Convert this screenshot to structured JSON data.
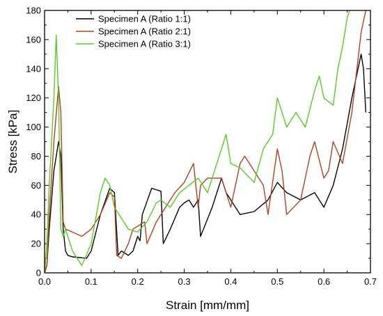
{
  "chart_data": {
    "type": "line",
    "xlabel": "Strain [mm/mm]",
    "ylabel": "Stress [kPa]",
    "xlim": [
      0.0,
      0.7
    ],
    "ylim": [
      0,
      180
    ],
    "xticks": [
      0.0,
      0.1,
      0.2,
      0.3,
      0.4,
      0.5,
      0.6,
      0.7
    ],
    "xtick_labels": [
      "0.0",
      "0.1",
      "0.2",
      "0.3",
      "0.4",
      "0.5",
      "0.6",
      "0.7"
    ],
    "yticks": [
      0,
      20,
      40,
      60,
      80,
      100,
      120,
      140,
      160,
      180
    ],
    "ytick_labels": [
      "0",
      "20",
      "40",
      "60",
      "80",
      "100",
      "120",
      "140",
      "160",
      "180"
    ],
    "grid": false,
    "legend_position": "top-left",
    "series": [
      {
        "name": "Specimen A (Ratio 1:1)",
        "color": "#000000",
        "x": [
          0.0,
          0.005,
          0.01,
          0.02,
          0.03,
          0.035,
          0.04,
          0.045,
          0.05,
          0.06,
          0.09,
          0.1,
          0.12,
          0.14,
          0.15,
          0.158,
          0.165,
          0.18,
          0.19,
          0.2,
          0.205,
          0.21,
          0.23,
          0.25,
          0.255,
          0.27,
          0.29,
          0.3,
          0.31,
          0.32,
          0.33,
          0.335,
          0.36,
          0.38,
          0.39,
          0.42,
          0.45,
          0.48,
          0.5,
          0.52,
          0.55,
          0.58,
          0.6,
          0.62,
          0.64,
          0.66,
          0.68,
          0.685,
          0.69
        ],
        "y": [
          0,
          5,
          30,
          70,
          90,
          80,
          30,
          15,
          12,
          11,
          10,
          15,
          40,
          58,
          55,
          12,
          15,
          12,
          15,
          25,
          22,
          40,
          58,
          56,
          20,
          30,
          45,
          48,
          50,
          45,
          50,
          25,
          45,
          65,
          55,
          40,
          42,
          50,
          62,
          55,
          50,
          55,
          45,
          60,
          85,
          120,
          150,
          140,
          110
        ]
      },
      {
        "name": "Specimen A (Ratio 2:1)",
        "color": "#b0411e",
        "x": [
          0.0,
          0.005,
          0.01,
          0.02,
          0.03,
          0.035,
          0.04,
          0.045,
          0.06,
          0.08,
          0.1,
          0.12,
          0.14,
          0.15,
          0.155,
          0.165,
          0.18,
          0.19,
          0.2,
          0.215,
          0.22,
          0.24,
          0.26,
          0.28,
          0.3,
          0.32,
          0.33,
          0.335,
          0.35,
          0.38,
          0.4,
          0.42,
          0.43,
          0.45,
          0.47,
          0.48,
          0.5,
          0.51,
          0.52,
          0.55,
          0.57,
          0.58,
          0.6,
          0.61,
          0.62,
          0.64,
          0.66,
          0.68,
          0.69
        ],
        "y": [
          0,
          5,
          40,
          90,
          128,
          110,
          35,
          30,
          28,
          25,
          30,
          40,
          55,
          52,
          12,
          10,
          20,
          30,
          32,
          35,
          20,
          35,
          45,
          55,
          62,
          75,
          45,
          60,
          65,
          65,
          45,
          75,
          80,
          70,
          60,
          40,
          85,
          70,
          40,
          50,
          80,
          90,
          65,
          70,
          90,
          75,
          110,
          165,
          180
        ]
      },
      {
        "name": "Specimen A (Ratio 3:1)",
        "color": "#55cc22",
        "x": [
          0.0,
          0.005,
          0.01,
          0.02,
          0.025,
          0.03,
          0.035,
          0.04,
          0.045,
          0.06,
          0.08,
          0.1,
          0.12,
          0.13,
          0.14,
          0.15,
          0.16,
          0.17,
          0.18,
          0.2,
          0.22,
          0.24,
          0.25,
          0.27,
          0.29,
          0.31,
          0.33,
          0.35,
          0.37,
          0.39,
          0.4,
          0.42,
          0.45,
          0.47,
          0.49,
          0.5,
          0.52,
          0.54,
          0.56,
          0.58,
          0.59,
          0.6,
          0.62,
          0.63,
          0.64,
          0.65,
          0.655
        ],
        "y": [
          0,
          20,
          60,
          120,
          163,
          120,
          30,
          25,
          30,
          15,
          5,
          20,
          55,
          65,
          60,
          45,
          40,
          35,
          30,
          28,
          35,
          48,
          50,
          45,
          55,
          60,
          65,
          55,
          75,
          95,
          75,
          72,
          62,
          85,
          95,
          120,
          100,
          110,
          100,
          125,
          135,
          120,
          115,
          140,
          155,
          175,
          180
        ]
      }
    ]
  }
}
